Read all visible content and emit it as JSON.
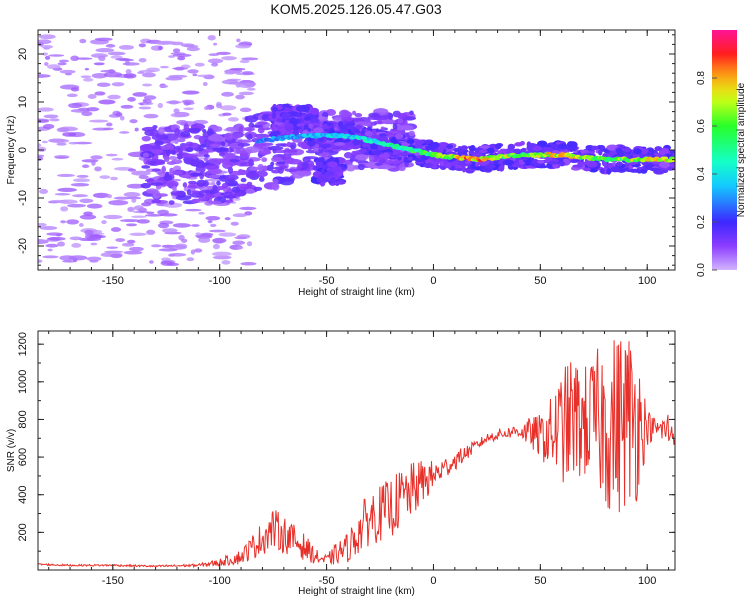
{
  "title": "KOM5.2025.126.05.47.G03",
  "colors": {
    "axes": "#222222",
    "snr_line": "#e8302a"
  },
  "chart_data": [
    {
      "type": "heatmap",
      "title": "KOM5.2025.126.05.47.G03",
      "xlabel": "Height of straight line (km)",
      "ylabel": "Frequency (Hz)",
      "xlim": [
        -185,
        113
      ],
      "ylim": [
        -25,
        25
      ],
      "xticks": [
        -150,
        -100,
        -50,
        0,
        50,
        100
      ],
      "xtick_labels": [
        "-150",
        "-100",
        "-50",
        "0",
        "50",
        "100"
      ],
      "yticks": [
        -20,
        -10,
        0,
        10,
        20
      ],
      "ytick_labels": [
        "-20",
        "-10",
        "0",
        "10",
        "20"
      ],
      "colorbar": {
        "label": "Normalized spectral amplitude",
        "range": [
          0,
          1
        ],
        "ticks": [
          0.0,
          0.2,
          0.4,
          0.6,
          0.8
        ],
        "tick_labels": [
          "0.0",
          "0.2",
          "0.4",
          "0.6",
          "0.8"
        ],
        "colormap": "rainbow"
      },
      "ridge": {
        "description_points_x": [
          -80,
          -60,
          -40,
          -20,
          0,
          20,
          40,
          60,
          80,
          100,
          113
        ],
        "frequency_hz": [
          2,
          3,
          3,
          1,
          -1,
          -2,
          -1,
          -1,
          -2,
          -2,
          -2
        ],
        "amplitude": [
          0.3,
          0.35,
          0.4,
          0.5,
          0.6,
          0.85,
          0.6,
          0.8,
          0.6,
          0.7,
          0.8
        ]
      }
    },
    {
      "type": "line",
      "xlabel": "Height of straight line (km)",
      "ylabel": "SNR (v/v)",
      "xlim": [
        -185,
        113
      ],
      "ylim": [
        0,
        1270
      ],
      "xticks": [
        -150,
        -100,
        -50,
        0,
        50,
        100
      ],
      "xtick_labels": [
        "-150",
        "-100",
        "-50",
        "0",
        "50",
        "100"
      ],
      "yticks": [
        200,
        400,
        600,
        800,
        1000,
        1200
      ],
      "ytick_labels": [
        "200",
        "400",
        "600",
        "800",
        "1000",
        "1200"
      ],
      "series": [
        {
          "x": [
            -185,
            -170,
            -150,
            -130,
            -110,
            -100,
            -90,
            -80,
            -75,
            -70,
            -60,
            -55,
            -50,
            -45,
            -40,
            -35,
            -30,
            -25,
            -20,
            -15,
            -10,
            -5,
            0,
            5,
            10,
            15,
            20,
            25,
            30,
            35,
            40,
            45,
            50,
            55,
            60,
            65,
            70,
            75,
            80,
            85,
            90,
            95,
            100,
            105,
            110,
            113
          ],
          "values": [
            30,
            25,
            25,
            20,
            25,
            40,
            70,
            170,
            220,
            190,
            120,
            70,
            50,
            90,
            120,
            200,
            280,
            300,
            330,
            380,
            420,
            470,
            500,
            540,
            580,
            620,
            660,
            700,
            720,
            730,
            740,
            730,
            710,
            720,
            760,
            800,
            780,
            800,
            780,
            760,
            820,
            800,
            760,
            750,
            740,
            730
          ],
          "noise": [
            5,
            5,
            5,
            5,
            8,
            20,
            40,
            90,
            110,
            100,
            70,
            40,
            30,
            60,
            80,
            120,
            150,
            150,
            160,
            160,
            150,
            120,
            80,
            60,
            50,
            40,
            30,
            25,
            30,
            30,
            40,
            80,
            120,
            200,
            300,
            350,
            300,
            350,
            450,
            500,
            500,
            450,
            100,
            40,
            120,
            60
          ]
        }
      ]
    }
  ]
}
